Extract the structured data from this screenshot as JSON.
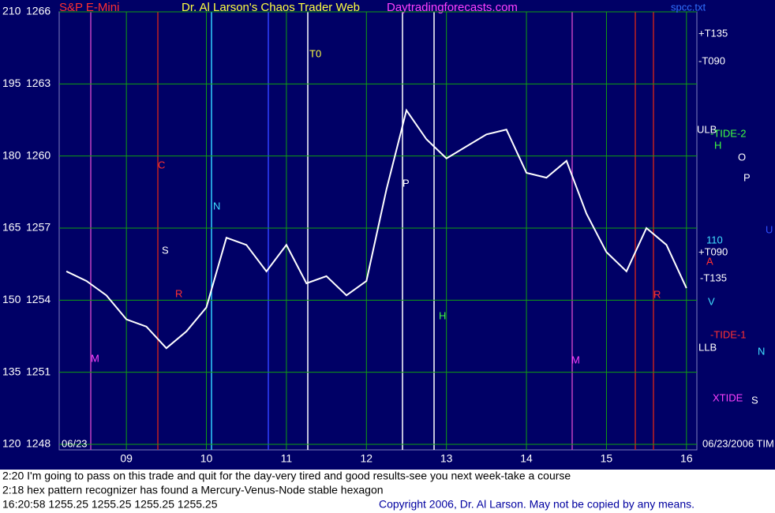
{
  "chart_data": {
    "type": "line",
    "title_parts": [
      {
        "text": "S&P E-Mini",
        "color": "#ff3030"
      },
      {
        "text": "Dr. Al Larson's Chaos Trader Web",
        "color": "#ffff40"
      },
      {
        "text": "Daytradingforecasts.com",
        "color": "#ff40ff"
      }
    ],
    "x": [
      8.25,
      8.5,
      8.75,
      9,
      9.25,
      9.5,
      9.75,
      10,
      10.25,
      10.5,
      10.75,
      11,
      11.25,
      11.5,
      11.75,
      12,
      12.25,
      12.5,
      12.75,
      13,
      13.25,
      13.5,
      13.75,
      14,
      14.25,
      14.5,
      14.75,
      15,
      15.25,
      15.5,
      15.75,
      16
    ],
    "series": [
      {
        "color": "#ffffff",
        "values": [
          1255.2,
          1254.8,
          1254.2,
          1253.2,
          1252.9,
          1252.0,
          1252.7,
          1253.7,
          1256.6,
          1256.3,
          1255.2,
          1256.3,
          1254.7,
          1255.0,
          1254.2,
          1254.8,
          1258.6,
          1261.9,
          1260.7,
          1259.9,
          1260.4,
          1260.9,
          1261.1,
          1259.3,
          1259.1,
          1259.8,
          1257.6,
          1256.0,
          1255.2,
          1257.0,
          1256.3,
          1254.5
        ]
      }
    ],
    "xlim": [
      8.16,
      16.13
    ],
    "xticks": [
      {
        "value": 9,
        "label": "09"
      },
      10,
      11,
      12,
      13,
      14,
      15,
      16
    ],
    "ylim": [
      1248,
      1266
    ],
    "yticks": [
      1248,
      1251,
      1254,
      1257,
      1260,
      1263,
      1266
    ],
    "y2lim": [
      120,
      210
    ],
    "y2ticks": [
      120,
      135,
      150,
      165,
      180,
      195,
      210
    ],
    "grid": true,
    "grid_color": "#10a010",
    "annotations": [
      {
        "text": "+T135",
        "color": "#ffffff"
      },
      {
        "text": "-T090",
        "color": "#ffffff"
      },
      {
        "text": "ULB",
        "color": "#ffffff"
      },
      {
        "text": "-TIDE-2",
        "color": "#40ff40"
      },
      {
        "text": "H",
        "color": "#40ff40"
      },
      {
        "text": "O",
        "color": "#ffffff"
      },
      {
        "text": "P",
        "color": "#ffffff"
      },
      {
        "text": "110",
        "color": "#40e0ff"
      },
      {
        "text": "+T090",
        "color": "#ffffff"
      },
      {
        "text": "A",
        "color": "#ff3030"
      },
      {
        "text": "-T135",
        "color": "#ffffff"
      },
      {
        "text": "V",
        "color": "#40e0ff"
      },
      {
        "text": "-TIDE-1",
        "color": "#ff3030"
      },
      {
        "text": "LLB",
        "color": "#ffffff"
      },
      {
        "text": "N",
        "color": "#40e0ff"
      },
      {
        "text": "XTIDE",
        "color": "#ff40ff"
      },
      {
        "text": "S",
        "color": "#ffffff"
      },
      {
        "text": "U",
        "color": "#3050ff"
      },
      {
        "text": "spcc.txt",
        "color": "#3070ff"
      },
      {
        "text": "T0",
        "color": "#ffff40"
      },
      {
        "text": "M",
        "color": "#ff40ff"
      },
      {
        "text": "M",
        "color": "#ff40ff"
      },
      {
        "text": "H",
        "color": "#40ff40"
      },
      {
        "text": "R",
        "color": "#ff3030"
      },
      {
        "text": "R",
        "color": "#ff3030"
      },
      {
        "text": "S",
        "color": "#ffffff"
      },
      {
        "text": "N",
        "color": "#40e0ff"
      },
      {
        "text": "P",
        "color": "#ffffff"
      },
      {
        "text": "C",
        "color": "#ff3030"
      },
      {
        "text": "06/23",
        "color": "#ffffff"
      },
      {
        "text": "06/23/2006 TIM",
        "color": "#ffffff"
      }
    ],
    "notes": [
      "2:20 I'm going to pass on this trade and quit for the day-very tired and good results-see you next week-take a course",
      "2:18 hex pattern recognizer has found a Mercury-Venus-Node stable hexagon"
    ],
    "status": "16:20:58  1255.25 1255.25 1255.25 1255.25",
    "copyright": "Copyright 2006, Dr. Al Larson. May not be copied by any means."
  }
}
